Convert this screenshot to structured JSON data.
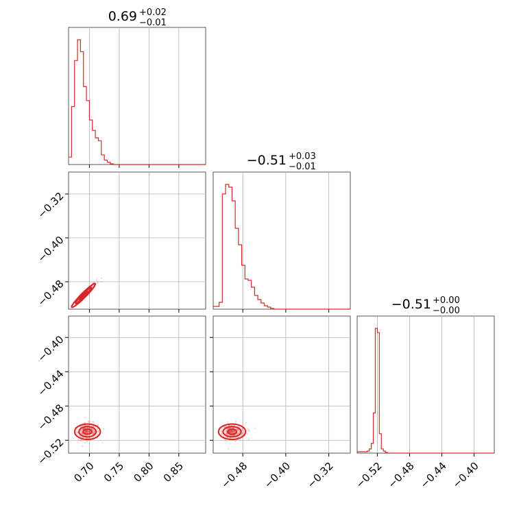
{
  "chart_data": {
    "type": "corner",
    "color": "#d62728",
    "axes": {
      "p0": {
        "range": [
          0.665,
          0.895
        ],
        "ticks": [
          0.7,
          0.75,
          0.8,
          0.85
        ],
        "tick_labels": [
          "0.70",
          "0.75",
          "0.80",
          "0.85"
        ]
      },
      "p1_row": {
        "range": [
          -0.53,
          -0.28
        ],
        "ticks": [
          -0.48,
          -0.4,
          -0.32
        ],
        "tick_labels": [
          "−0.48",
          "−0.40",
          "−0.32"
        ]
      },
      "p1_col": {
        "range": [
          -0.535,
          -0.28
        ],
        "ticks": [
          -0.48,
          -0.4,
          -0.32
        ],
        "tick_labels": [
          "−0.48",
          "−0.40",
          "−0.32"
        ]
      },
      "p2_row": {
        "range": [
          -0.535,
          -0.375
        ],
        "ticks": [
          -0.52,
          -0.48,
          -0.44,
          -0.4
        ],
        "tick_labels": [
          "−0.52",
          "−0.48",
          "−0.44",
          "−0.40"
        ]
      },
      "p2_col": {
        "range": [
          -0.545,
          -0.375
        ],
        "ticks": [
          -0.52,
          -0.48,
          -0.44,
          -0.4
        ],
        "tick_labels": [
          "−0.52",
          "−0.48",
          "−0.44",
          "−0.40"
        ]
      }
    },
    "titles": [
      {
        "value": "0.69",
        "plus": "+0.02",
        "minus": "−0.01"
      },
      {
        "value": "−0.51",
        "plus": "+0.03",
        "minus": "−0.01"
      },
      {
        "value": "−0.51",
        "plus": "+0.00",
        "minus": "−0.00"
      }
    ],
    "hist_p0": {
      "x0": 0.665,
      "width": 0.005,
      "counts": [
        10,
        78,
        140,
        168,
        152,
        105,
        86,
        60,
        46,
        36,
        32,
        13,
        6,
        3,
        1,
        0
      ]
    },
    "hist_p1": {
      "x0": -0.53,
      "width": 0.006,
      "counts": [
        4,
        10,
        168,
        182,
        178,
        158,
        118,
        94,
        64,
        44,
        42,
        32,
        20,
        14,
        9,
        5,
        3,
        1,
        0
      ]
    },
    "hist_p2": {
      "x0": -0.535,
      "width": 0.0025,
      "counts": [
        2,
        3,
        6,
        14,
        58,
        180,
        174,
        28,
        6,
        3,
        1,
        0
      ]
    },
    "scatter_01": {
      "center": [
        0.69,
        -0.505
      ],
      "spread": [
        0.011,
        0.012
      ],
      "corr": 0.96
    },
    "scatter_02": {
      "center": [
        0.695,
        -0.51
      ],
      "spread": [
        0.012,
        0.005
      ],
      "corr": 0.0
    },
    "scatter_12": {
      "center": [
        -0.502,
        -0.51
      ],
      "spread": [
        0.014,
        0.005
      ],
      "corr": 0.0
    }
  }
}
